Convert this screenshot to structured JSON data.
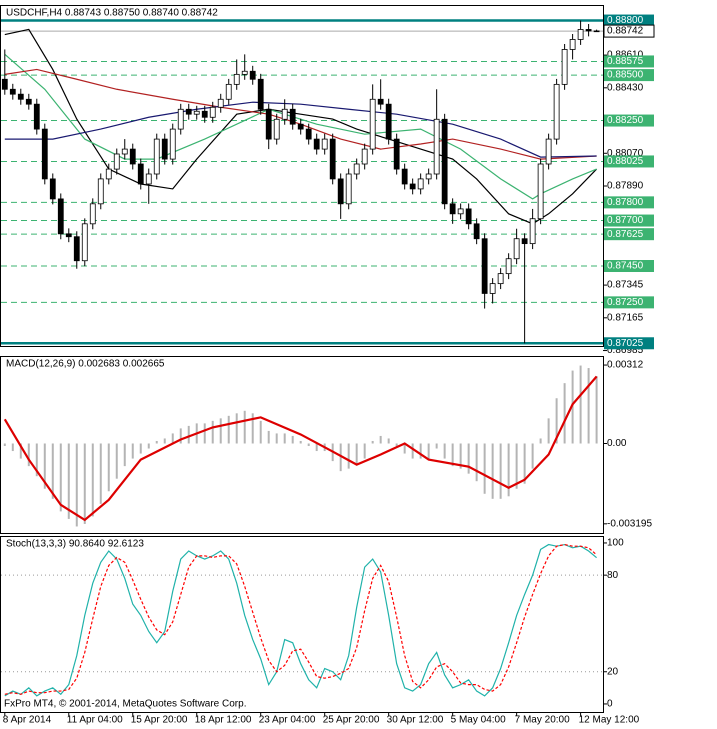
{
  "chart_data": [
    {
      "type": "candlestick",
      "title": "USDCHF,H4  0.88743 0.88750 0.88740 0.88742",
      "xlim": [
        -0.6,
        74.8
      ],
      "ylim": [
        0.8701,
        0.8888
      ],
      "up_color": "#ffffff",
      "down_color": "#000000",
      "open": [
        0.88477,
        0.88422,
        0.88395,
        0.88367,
        0.8834,
        0.88203,
        0.87929,
        0.87819,
        0.87627,
        0.87611,
        0.87479,
        0.87682,
        0.87792,
        0.87929,
        0.87983,
        0.88066,
        0.88093,
        0.88011,
        0.87901,
        0.87956,
        0.88148,
        0.88038,
        0.88203,
        0.88312,
        0.88285,
        0.88301,
        0.88268,
        0.88323,
        0.88367,
        0.88449,
        0.88504,
        0.88521,
        0.88477,
        0.88312,
        0.88148,
        0.88257,
        0.88312,
        0.8823,
        0.88203,
        0.88148,
        0.88093,
        0.88148,
        0.87929,
        0.87792,
        0.87956,
        0.88011,
        0.88093,
        0.88367,
        0.8834,
        0.88148,
        0.87983,
        0.87901,
        0.87874,
        0.87929,
        0.87956,
        0.88257,
        0.87792,
        0.87737,
        0.87764,
        0.87682,
        0.876,
        0.87299,
        0.87353,
        0.87408,
        0.8749,
        0.876,
        0.87573,
        0.8771,
        0.88011,
        0.88148,
        0.88449,
        0.88641,
        0.88696,
        0.88751,
        0.88743
      ],
      "high": [
        0.88641,
        0.88452,
        0.88425,
        0.88397,
        0.8837,
        0.88233,
        0.87959,
        0.87849,
        0.87657,
        0.87641,
        0.87712,
        0.87822,
        0.87959,
        0.88013,
        0.88096,
        0.88148,
        0.88123,
        0.88041,
        0.87986,
        0.88178,
        0.88178,
        0.88233,
        0.88342,
        0.88342,
        0.88331,
        0.88331,
        0.88353,
        0.88397,
        0.88479,
        0.88586,
        0.88614,
        0.88551,
        0.88507,
        0.88342,
        0.88287,
        0.88367,
        0.88342,
        0.8826,
        0.88233,
        0.88178,
        0.88178,
        0.88178,
        0.87959,
        0.87986,
        0.88041,
        0.88123,
        0.88449,
        0.88477,
        0.8837,
        0.88178,
        0.88013,
        0.87931,
        0.87959,
        0.87986,
        0.88422,
        0.88287,
        0.87822,
        0.87794,
        0.87794,
        0.87712,
        0.8763,
        0.87383,
        0.87438,
        0.8752,
        0.87655,
        0.8763,
        0.87764,
        0.88041,
        0.88178,
        0.88479,
        0.88671,
        0.88726,
        0.888,
        0.88781,
        0.8875
      ],
      "low": [
        0.88392,
        0.88365,
        0.88337,
        0.8831,
        0.88173,
        0.87899,
        0.87789,
        0.87597,
        0.87581,
        0.87435,
        0.87449,
        0.87652,
        0.87762,
        0.87899,
        0.87953,
        0.88036,
        0.87981,
        0.87871,
        0.87792,
        0.87926,
        0.88008,
        0.88008,
        0.88173,
        0.88255,
        0.88255,
        0.88238,
        0.88238,
        0.88293,
        0.88337,
        0.88419,
        0.88474,
        0.88447,
        0.88282,
        0.88093,
        0.88118,
        0.88227,
        0.882,
        0.88173,
        0.88118,
        0.88063,
        0.88063,
        0.87899,
        0.87709,
        0.87762,
        0.87926,
        0.87981,
        0.88063,
        0.8831,
        0.88118,
        0.87953,
        0.87871,
        0.87844,
        0.87844,
        0.87899,
        0.87926,
        0.87762,
        0.87682,
        0.87707,
        0.87652,
        0.8757,
        0.87216,
        0.87244,
        0.87323,
        0.87378,
        0.8746,
        0.87025,
        0.87543,
        0.8768,
        0.87981,
        0.88118,
        0.88419,
        0.88586,
        0.88666,
        0.88713,
        0.8874
      ],
      "close": [
        0.88422,
        0.88395,
        0.88367,
        0.8834,
        0.88203,
        0.87929,
        0.87819,
        0.87627,
        0.87611,
        0.87479,
        0.87682,
        0.87792,
        0.87929,
        0.87983,
        0.88066,
        0.88093,
        0.88011,
        0.87901,
        0.87956,
        0.88148,
        0.88038,
        0.88203,
        0.88312,
        0.88285,
        0.88301,
        0.88268,
        0.88323,
        0.88367,
        0.88449,
        0.88504,
        0.88521,
        0.88477,
        0.88312,
        0.88148,
        0.88257,
        0.88312,
        0.8823,
        0.88203,
        0.88148,
        0.88093,
        0.88148,
        0.87929,
        0.87792,
        0.87956,
        0.88011,
        0.88093,
        0.88367,
        0.8834,
        0.88148,
        0.87983,
        0.87901,
        0.87874,
        0.87929,
        0.87956,
        0.88257,
        0.87792,
        0.87737,
        0.87764,
        0.87682,
        0.876,
        0.87299,
        0.87353,
        0.87408,
        0.8749,
        0.876,
        0.87573,
        0.8771,
        0.88011,
        0.88148,
        0.88449,
        0.88641,
        0.88696,
        0.88751,
        0.88743,
        0.88742
      ],
      "lines": [
        {
          "color": "#000000",
          "x": [
            0,
            3,
            6,
            9,
            13,
            17,
            21,
            24,
            29,
            33,
            37,
            41,
            44,
            48,
            52,
            56,
            59,
            63,
            66,
            68,
            71,
            74
          ],
          "values": [
            0.88723,
            0.88751,
            0.88531,
            0.88258,
            0.87983,
            0.87901,
            0.87874,
            0.88038,
            0.88285,
            0.88312,
            0.88285,
            0.88258,
            0.88203,
            0.88148,
            0.88093,
            0.88038,
            0.87929,
            0.87737,
            0.87682,
            0.87737,
            0.87847,
            0.87983
          ]
        },
        {
          "color": "#3cb371",
          "x": [
            0,
            5,
            10,
            15,
            19,
            25,
            33,
            39,
            45,
            52,
            57,
            62,
            66,
            67,
            71,
            74
          ],
          "values": [
            0.88614,
            0.88422,
            0.88148,
            0.88038,
            0.88038,
            0.88148,
            0.88312,
            0.8823,
            0.88175,
            0.88203,
            0.88093,
            0.87929,
            0.87819,
            0.87847,
            0.87929,
            0.87983
          ]
        },
        {
          "color": "#b22222",
          "x": [
            0,
            4,
            9,
            14,
            21,
            27,
            33,
            37,
            42,
            47,
            52,
            56,
            62,
            67,
            74
          ],
          "values": [
            0.88504,
            0.88531,
            0.88477,
            0.88422,
            0.88367,
            0.88323,
            0.88285,
            0.8823,
            0.88148,
            0.88093,
            0.88121,
            0.88148,
            0.88093,
            0.88038,
            0.88055
          ]
        },
        {
          "color": "#191970",
          "x": [
            0,
            6,
            12,
            18,
            24,
            31,
            37,
            43,
            49,
            56,
            62,
            67,
            74
          ],
          "values": [
            0.88148,
            0.88148,
            0.88203,
            0.88268,
            0.88312,
            0.88351,
            0.8834,
            0.88312,
            0.88285,
            0.8823,
            0.88148,
            0.88049,
            0.88055
          ]
        }
      ],
      "yticks": [
        {
          "value": 0.8861,
          "label": "0.88610"
        },
        {
          "value": 0.8843,
          "label": "0.88430"
        },
        {
          "value": 0.8807,
          "label": "0.88070"
        },
        {
          "value": 0.8789,
          "label": "0.87890"
        },
        {
          "value": 0.87345,
          "label": "0.87345"
        },
        {
          "value": 0.87165,
          "label": "0.87165"
        },
        {
          "value": 0.86985,
          "label": "0.86985"
        }
      ],
      "levels": [
        {
          "value": 0.888,
          "label": "0.88800",
          "color": "#008080",
          "dashed": false
        },
        {
          "value": 0.88575,
          "label": "0.88575",
          "color": "#3cb371",
          "dashed": true
        },
        {
          "value": 0.885,
          "label": "0.88500",
          "color": "#3cb371",
          "dashed": true
        },
        {
          "value": 0.8825,
          "label": "0.88250",
          "color": "#3cb371",
          "dashed": true
        },
        {
          "value": 0.88025,
          "label": "0.88025",
          "color": "#3cb371",
          "dashed": true
        },
        {
          "value": 0.878,
          "label": "0.87800",
          "color": "#3cb371",
          "dashed": true
        },
        {
          "value": 0.877,
          "label": "0.87700",
          "color": "#3cb371",
          "dashed": true
        },
        {
          "value": 0.87625,
          "label": "0.87625",
          "color": "#3cb371",
          "dashed": true
        },
        {
          "value": 0.8745,
          "label": "0.87450",
          "color": "#3cb371",
          "dashed": true
        },
        {
          "value": 0.8725,
          "label": "0.87250",
          "color": "#3cb371",
          "dashed": true
        },
        {
          "value": 0.87025,
          "label": "0.87025",
          "color": "#008080",
          "dashed": false
        }
      ],
      "last_price": {
        "value": 0.88742,
        "label": "0.88742"
      }
    },
    {
      "type": "macd",
      "title": "MACD(12,26,9) 0.002683 0.002665",
      "xlim": [
        -0.6,
        74.8
      ],
      "ylim": [
        -0.00356,
        0.00344
      ],
      "yticks": [
        0.00312,
        {
          "value": 0,
          "label": "0.00"
        },
        -0.003195
      ],
      "histogram": {
        "color": "#b4b4b4",
        "values": [
          -0.0001,
          -0.0003,
          -0.0006,
          -0.0009,
          -0.0013,
          -0.0018,
          -0.0022,
          -0.0027,
          -0.003,
          -0.0033,
          -0.0032,
          -0.0029,
          -0.0024,
          -0.0019,
          -0.0014,
          -0.0009,
          -0.0006,
          -0.0004,
          -0.0002,
          0.0001,
          0.0002,
          0.0004,
          0.0006,
          0.0007,
          0.0008,
          0.0008,
          0.0009,
          0.001,
          0.0011,
          0.0012,
          0.0013,
          0.0012,
          0.0009,
          0.0005,
          0.0004,
          0.0004,
          0.0003,
          0.0001,
          -0.0001,
          -0.0003,
          -0.0003,
          -0.0007,
          -0.0011,
          -0.001,
          -0.0008,
          -0.0006,
          0.0001,
          0.0003,
          0.0002,
          -0.0001,
          -0.0004,
          -0.0006,
          -0.0006,
          -0.0006,
          -0.0002,
          -0.0006,
          -0.0009,
          -0.001,
          -0.0012,
          -0.0015,
          -0.002,
          -0.0022,
          -0.0022,
          -0.0021,
          -0.0018,
          -0.0016,
          -0.001,
          0.0002,
          0.001,
          0.0018,
          0.0024,
          0.0029,
          0.0031,
          0.003,
          0.002683
        ]
      },
      "signal": {
        "color": "#dd0000",
        "x": [
          0,
          3,
          7,
          10,
          13,
          17,
          22,
          26,
          32,
          37,
          41,
          44,
          47,
          50,
          53,
          58,
          63,
          65,
          68,
          71,
          74
        ],
        "values": [
          0.00096,
          -0.00064,
          -0.00244,
          -0.00304,
          -0.00224,
          -0.00064,
          0.00016,
          0.00064,
          0.00104,
          0.00036,
          -0.00032,
          -0.00084,
          -0.00044,
          0,
          -0.00064,
          -0.00092,
          -0.00176,
          -0.00144,
          -0.00044,
          0.00156,
          0.002665
        ]
      }
    },
    {
      "type": "stochastic",
      "title": "Stoch(13,3,3) 90.8640 92.6123",
      "xlim": [
        -0.6,
        74.8
      ],
      "ylim": [
        -5,
        103.7
      ],
      "yticks": [
        100,
        80,
        20,
        0
      ],
      "levels": [
        80,
        20
      ],
      "main": {
        "color": "#20b2aa",
        "values": [
          5,
          8,
          6,
          10,
          5,
          8,
          10,
          6,
          12,
          30,
          55,
          75,
          88,
          95,
          90,
          78,
          62,
          55,
          45,
          38,
          45,
          70,
          90,
          95,
          92,
          90,
          92,
          95,
          90,
          75,
          55,
          40,
          28,
          12,
          20,
          40,
          38,
          25,
          15,
          10,
          22,
          20,
          15,
          30,
          60,
          85,
          90,
          82,
          55,
          25,
          10,
          8,
          12,
          25,
          32,
          18,
          10,
          12,
          15,
          8,
          5,
          10,
          22,
          38,
          55,
          68,
          80,
          96,
          99,
          98,
          99,
          97,
          98,
          95,
          90.864
        ]
      },
      "signal": {
        "color": "#ff0000",
        "values": [
          6,
          7,
          6,
          8,
          7,
          7,
          8,
          8,
          9,
          16,
          32,
          53,
          73,
          86,
          91,
          88,
          77,
          65,
          54,
          46,
          43,
          51,
          68,
          85,
          92,
          92,
          91,
          92,
          92,
          87,
          73,
          57,
          41,
          27,
          20,
          24,
          33,
          34,
          26,
          17,
          16,
          17,
          19,
          22,
          35,
          58,
          78,
          86,
          76,
          54,
          30,
          14,
          10,
          15,
          23,
          25,
          20,
          13,
          12,
          12,
          9,
          8,
          12,
          23,
          38,
          54,
          68,
          81,
          92,
          98,
          99,
          98,
          98,
          97,
          92.6123
        ]
      },
      "xticks": [
        {
          "value": 0,
          "label": "8 Apr 2014"
        },
        {
          "value": 8,
          "label": "11 Apr 04:00"
        },
        {
          "value": 16,
          "label": "15 Apr 20:00"
        },
        {
          "value": 24,
          "label": "18 Apr 12:00"
        },
        {
          "value": 32,
          "label": "23 Apr 04:00"
        },
        {
          "value": 40,
          "label": "25 Apr 20:00"
        },
        {
          "value": 48,
          "label": "30 Apr 12:00"
        },
        {
          "value": 56,
          "label": "5 May 04:00"
        },
        {
          "value": 64,
          "label": "7 May 20:00"
        },
        {
          "value": 72,
          "label": "12 May 12:00"
        }
      ]
    }
  ],
  "footer": "FxPro MT4, © 2001-2014, MetaQuotes Software Corp."
}
